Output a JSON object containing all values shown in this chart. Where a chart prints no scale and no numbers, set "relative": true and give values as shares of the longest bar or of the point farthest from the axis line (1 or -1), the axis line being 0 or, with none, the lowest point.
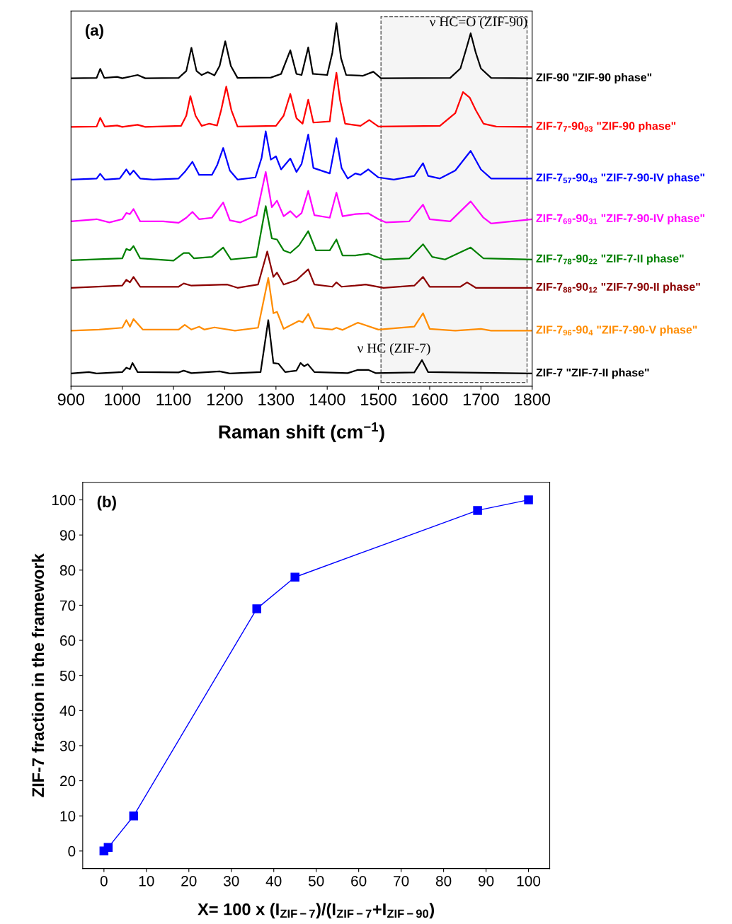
{
  "chart_data": [
    {
      "type": "line",
      "relative": true,
      "xlabel": "Raman shift (cm$^{−1}$)",
      "xlim": [
        900,
        1800
      ],
      "xticks": [
        900,
        1000,
        1100,
        1200,
        1300,
        1400,
        1500,
        1600,
        1700,
        1800
      ],
      "tick_labels": "x",
      "grid": false,
      "legend": false,
      "marker": "none",
      "line_style": "solid",
      "annotations": [
        "(a)",
        "ν HC=O (ZIF-90)",
        "ν HC (ZIF-7)"
      ],
      "bands": [
        {
          "axis": "x",
          "from": 1505,
          "to": 1790,
          "color": "#555555"
        }
      ],
      "series": [
        {
          "name": "ZIF-90 \"ZIF-90 phase\"",
          "color": "#000000",
          "x": [
            900,
            950,
            957,
            965,
            990,
            1000,
            1030,
            1045,
            1110,
            1125,
            1135,
            1145,
            1155,
            1167,
            1180,
            1190,
            1201,
            1212,
            1225,
            1290,
            1310,
            1328,
            1340,
            1350,
            1363,
            1372,
            1400,
            1410,
            1418,
            1427,
            1437,
            1470,
            1490,
            1505,
            1640,
            1660,
            1672,
            1680,
            1690,
            1700,
            1720,
            1800
          ],
          "values": [
            0.848,
            0.849,
            0.874,
            0.849,
            0.852,
            0.848,
            0.857,
            0.848,
            0.849,
            0.868,
            0.932,
            0.868,
            0.857,
            0.865,
            0.856,
            0.882,
            0.95,
            0.882,
            0.849,
            0.85,
            0.86,
            0.925,
            0.86,
            0.857,
            0.933,
            0.86,
            0.857,
            0.918,
            1.0,
            0.903,
            0.857,
            0.855,
            0.866,
            0.848,
            0.849,
            0.875,
            0.932,
            0.972,
            0.918,
            0.875,
            0.849,
            0.848
          ]
        },
        {
          "name": "ZIF-7$_{7}$-90$_{93}$ \"ZIF-90 phase\"",
          "color": "#ff0000",
          "x": [
            900,
            950,
            957,
            966,
            990,
            1000,
            1030,
            1045,
            1115,
            1125,
            1133,
            1143,
            1155,
            1170,
            1185,
            1193,
            1203,
            1213,
            1225,
            1300,
            1315,
            1328,
            1340,
            1352,
            1363,
            1373,
            1405,
            1412,
            1418,
            1425,
            1435,
            1465,
            1482,
            1500,
            1620,
            1650,
            1665,
            1678,
            1690,
            1705,
            1730,
            1800
          ],
          "values": [
            0.714,
            0.715,
            0.739,
            0.715,
            0.718,
            0.714,
            0.72,
            0.714,
            0.717,
            0.745,
            0.799,
            0.745,
            0.717,
            0.723,
            0.718,
            0.76,
            0.825,
            0.76,
            0.715,
            0.717,
            0.745,
            0.805,
            0.738,
            0.723,
            0.789,
            0.726,
            0.729,
            0.81,
            0.863,
            0.789,
            0.723,
            0.717,
            0.733,
            0.715,
            0.717,
            0.752,
            0.81,
            0.795,
            0.76,
            0.723,
            0.715,
            0.714
          ]
        },
        {
          "name": "ZIF-7$_{57}$-90$_{43}$ \"ZIF-7-90-IV phase\"",
          "color": "#0000ff",
          "x": [
            900,
            950,
            957,
            966,
            995,
            1008,
            1015,
            1022,
            1035,
            1060,
            1110,
            1122,
            1137,
            1150,
            1175,
            1185,
            1197,
            1210,
            1225,
            1260,
            1272,
            1280,
            1290,
            1300,
            1310,
            1328,
            1340,
            1350,
            1363,
            1373,
            1405,
            1418,
            1428,
            1440,
            1455,
            1465,
            1480,
            1500,
            1530,
            1570,
            1587,
            1597,
            1620,
            1650,
            1680,
            1700,
            1720,
            1800
          ],
          "values": [
            0.569,
            0.572,
            0.585,
            0.569,
            0.572,
            0.597,
            0.582,
            0.594,
            0.572,
            0.569,
            0.572,
            0.59,
            0.618,
            0.582,
            0.582,
            0.608,
            0.656,
            0.594,
            0.569,
            0.575,
            0.629,
            0.702,
            0.624,
            0.633,
            0.597,
            0.627,
            0.59,
            0.612,
            0.693,
            0.601,
            0.586,
            0.683,
            0.601,
            0.572,
            0.586,
            0.582,
            0.597,
            0.575,
            0.569,
            0.579,
            0.614,
            0.579,
            0.572,
            0.594,
            0.648,
            0.597,
            0.572,
            0.572
          ]
        },
        {
          "name": "ZIF-7$_{69}$-90$_{31}$ \"ZIF-7-90-IV phase\"",
          "color": "#ff00ff",
          "x": [
            900,
            950,
            975,
            1000,
            1008,
            1015,
            1022,
            1035,
            1080,
            1110,
            1125,
            1137,
            1150,
            1175,
            1197,
            1210,
            1230,
            1262,
            1280,
            1292,
            1302,
            1315,
            1328,
            1340,
            1350,
            1363,
            1375,
            1405,
            1418,
            1430,
            1455,
            1480,
            1500,
            1515,
            1560,
            1587,
            1600,
            1640,
            1680,
            1705,
            1720,
            1800
          ],
          "values": [
            0.454,
            0.46,
            0.451,
            0.46,
            0.477,
            0.474,
            0.488,
            0.454,
            0.454,
            0.45,
            0.464,
            0.48,
            0.46,
            0.464,
            0.506,
            0.457,
            0.451,
            0.471,
            0.59,
            0.493,
            0.511,
            0.468,
            0.482,
            0.465,
            0.477,
            0.538,
            0.471,
            0.464,
            0.533,
            0.468,
            0.474,
            0.476,
            0.46,
            0.451,
            0.454,
            0.5,
            0.46,
            0.454,
            0.509,
            0.464,
            0.448,
            0.46
          ]
        },
        {
          "name": "ZIF-7$_{78}$-90$_{22}$ \"ZIF-7-II phase\"",
          "color": "#008000",
          "x": [
            900,
            1000,
            1008,
            1015,
            1022,
            1035,
            1100,
            1120,
            1130,
            1140,
            1175,
            1197,
            1212,
            1262,
            1280,
            1292,
            1302,
            1315,
            1328,
            1345,
            1363,
            1378,
            1405,
            1418,
            1430,
            1455,
            1480,
            1510,
            1560,
            1587,
            1605,
            1630,
            1680,
            1705,
            1800
          ],
          "values": [
            0.347,
            0.352,
            0.378,
            0.374,
            0.386,
            0.352,
            0.346,
            0.367,
            0.367,
            0.352,
            0.356,
            0.382,
            0.349,
            0.356,
            0.496,
            0.407,
            0.404,
            0.374,
            0.367,
            0.388,
            0.427,
            0.374,
            0.374,
            0.404,
            0.36,
            0.36,
            0.365,
            0.349,
            0.352,
            0.391,
            0.356,
            0.349,
            0.382,
            0.352,
            0.349
          ]
        },
        {
          "name": "ZIF-7$_{88}$-90$_{12}$ \"ZIF-7-90-II phase\"",
          "color": "#8b0000",
          "x": [
            900,
            1000,
            1008,
            1015,
            1022,
            1035,
            1110,
            1120,
            1135,
            1205,
            1225,
            1265,
            1283,
            1295,
            1302,
            1315,
            1340,
            1363,
            1375,
            1410,
            1418,
            1428,
            1455,
            1475,
            1510,
            1570,
            1587,
            1600,
            1660,
            1673,
            1690,
            1800
          ],
          "values": [
            0.271,
            0.277,
            0.293,
            0.286,
            0.301,
            0.274,
            0.274,
            0.283,
            0.277,
            0.28,
            0.271,
            0.28,
            0.371,
            0.301,
            0.313,
            0.28,
            0.292,
            0.322,
            0.28,
            0.274,
            0.286,
            0.274,
            0.277,
            0.28,
            0.271,
            0.277,
            0.301,
            0.274,
            0.274,
            0.286,
            0.271,
            0.271
          ]
        },
        {
          "name": "ZIF-7$_{96}$-90$_{4}$ \"ZIF-7-90-V phase\"",
          "color": "#ff8c00",
          "x": [
            900,
            955,
            1000,
            1008,
            1015,
            1022,
            1040,
            1110,
            1122,
            1135,
            1150,
            1160,
            1180,
            1220,
            1265,
            1285,
            1295,
            1302,
            1315,
            1345,
            1352,
            1363,
            1375,
            1410,
            1418,
            1430,
            1460,
            1500,
            1570,
            1587,
            1600,
            1650,
            1700,
            1720,
            1800
          ],
          "values": [
            0.153,
            0.156,
            0.161,
            0.182,
            0.164,
            0.185,
            0.156,
            0.156,
            0.169,
            0.156,
            0.164,
            0.156,
            0.162,
            0.153,
            0.161,
            0.298,
            0.201,
            0.205,
            0.158,
            0.18,
            0.176,
            0.199,
            0.161,
            0.156,
            0.161,
            0.155,
            0.175,
            0.156,
            0.164,
            0.201,
            0.158,
            0.153,
            0.158,
            0.153,
            0.153
          ]
        },
        {
          "name": "ZIF-7 \"ZIF-7-II phase\"",
          "color": "#000000",
          "x": [
            900,
            935,
            950,
            1000,
            1008,
            1015,
            1020,
            1030,
            1110,
            1120,
            1135,
            1190,
            1210,
            1270,
            1285,
            1295,
            1305,
            1318,
            1340,
            1348,
            1355,
            1362,
            1375,
            1440,
            1460,
            1480,
            1495,
            1570,
            1585,
            1597,
            1800
          ],
          "values": [
            0.035,
            0.039,
            0.035,
            0.039,
            0.051,
            0.047,
            0.064,
            0.039,
            0.038,
            0.043,
            0.036,
            0.041,
            0.035,
            0.039,
            0.182,
            0.064,
            0.062,
            0.039,
            0.043,
            0.064,
            0.055,
            0.061,
            0.039,
            0.036,
            0.045,
            0.045,
            0.036,
            0.038,
            0.072,
            0.039,
            0.035
          ]
        }
      ]
    },
    {
      "type": "line",
      "xlabel": "X= 100 x (I$_{ZIF−7}$)/(I$_{ZIF−7}$+I$_{ZIF−90}$)",
      "ylabel": "ZIF-7 fraction in the framework",
      "xlim": [
        -5,
        105
      ],
      "ylim": [
        -5,
        105
      ],
      "xticks": [
        0,
        10,
        20,
        30,
        40,
        50,
        60,
        70,
        80,
        90,
        100
      ],
      "yticks": [
        0,
        10,
        20,
        30,
        40,
        50,
        60,
        70,
        80,
        90,
        100
      ],
      "grid": false,
      "legend": false,
      "marker": "square",
      "line_style": "solid",
      "annotations": [
        "(b)"
      ],
      "series": [
        {
          "color": "#0000ff",
          "x": [
            0,
            1,
            7,
            36,
            45,
            88,
            100
          ],
          "values": [
            0,
            1,
            10,
            69,
            78,
            97,
            100
          ]
        }
      ]
    }
  ]
}
